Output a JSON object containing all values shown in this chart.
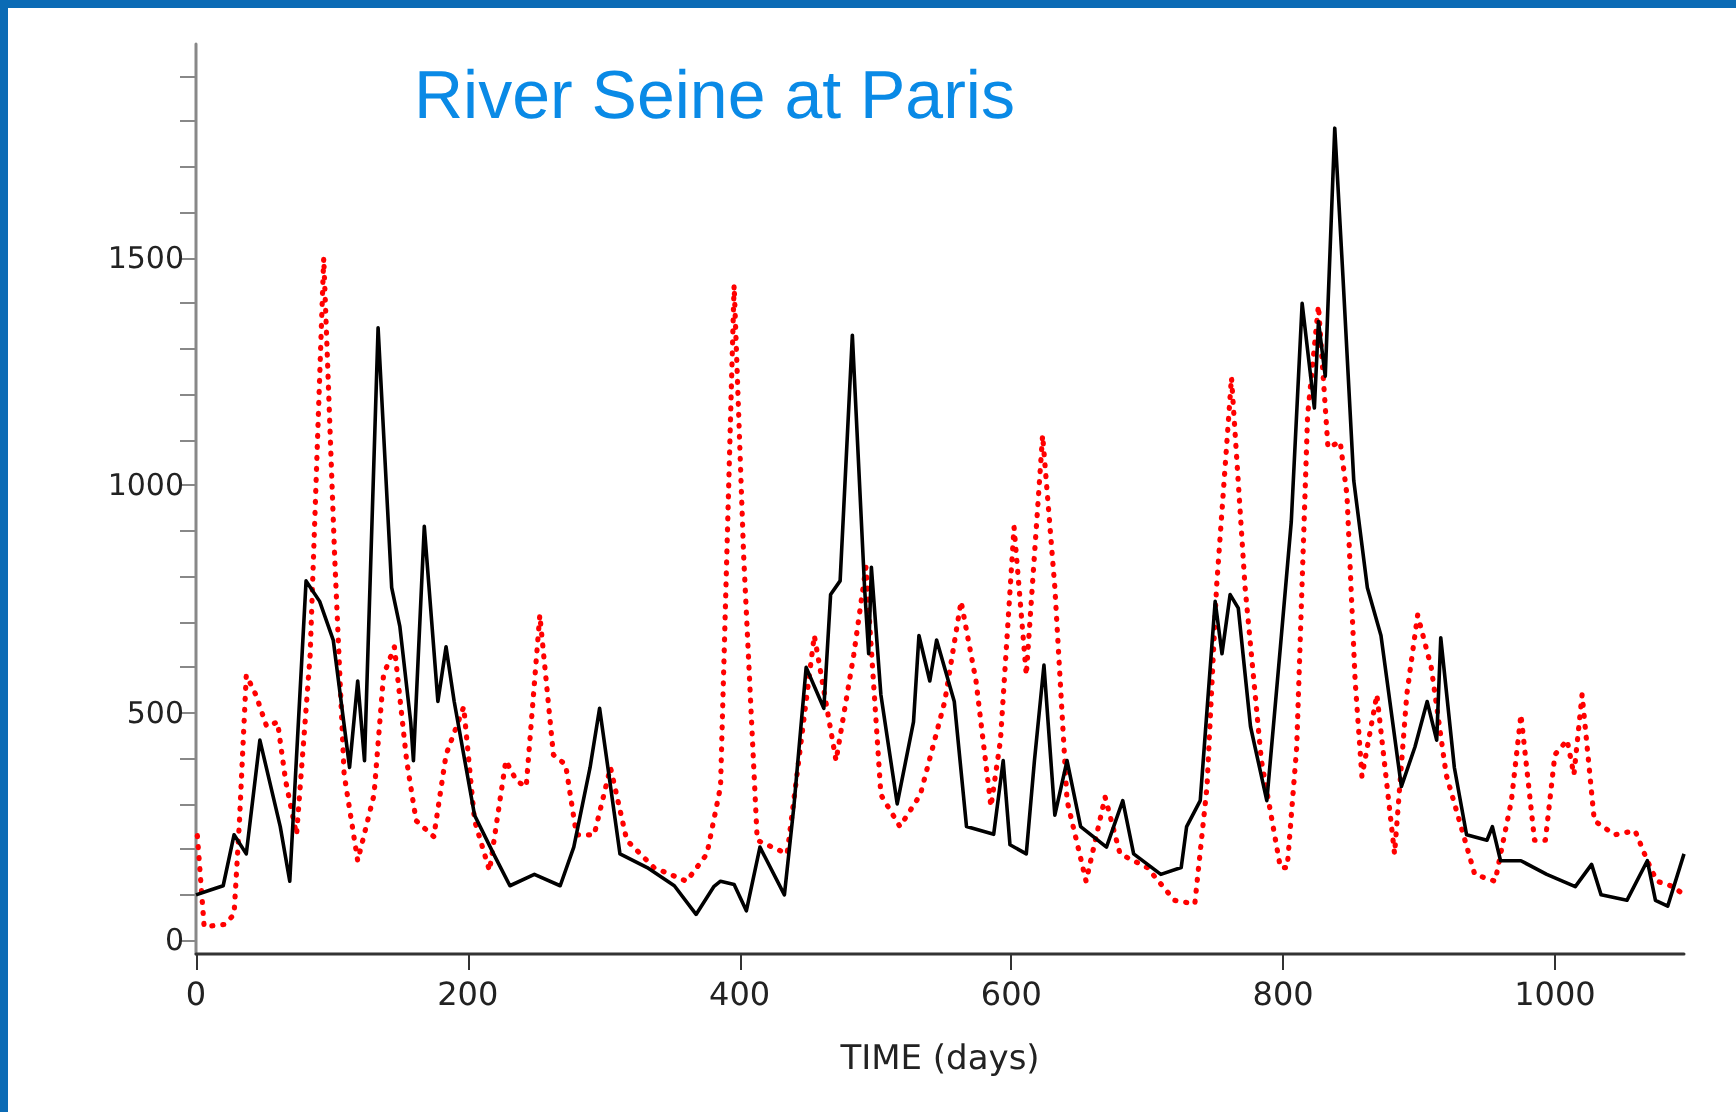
{
  "chart_data": {
    "type": "line",
    "title": "River Seine at Paris",
    "xlabel": "TIME (days)",
    "xlim": [
      0,
      1095
    ],
    "xticks": [
      0,
      200,
      400,
      600,
      800,
      1000
    ],
    "ylim": [
      -30,
      1970
    ],
    "yticks": [
      0,
      {
        "value": 100,
        "label": null
      },
      {
        "value": 200,
        "label": null
      },
      {
        "value": 300,
        "label": null
      },
      {
        "value": 400,
        "label": null
      },
      500,
      {
        "value": 600,
        "label": null
      },
      {
        "value": 700,
        "label": null
      },
      {
        "value": 800,
        "label": null
      },
      {
        "value": 900,
        "label": null
      },
      1000,
      {
        "value": 1100,
        "label": null
      },
      {
        "value": 1200,
        "label": null
      },
      {
        "value": 1300,
        "label": null
      },
      {
        "value": 1400,
        "label": null
      },
      1500,
      {
        "value": 1600,
        "label": null
      },
      {
        "value": 1700,
        "label": null
      },
      {
        "value": 1800,
        "label": null
      },
      {
        "value": 1900,
        "label": null
      }
    ],
    "grid": false,
    "marker": "none",
    "series": [
      {
        "color": "#ff0000",
        "line_style": "dotted",
        "x": [
          1,
          6,
          21,
          28,
          32,
          37,
          44,
          52,
          60,
          66,
          74,
          84,
          94,
          102,
          109,
          119,
          131,
          138,
          146,
          155,
          162,
          175,
          184,
          197,
          205,
          216,
          228,
          236,
          243,
          253,
          263,
          272,
          280,
          293,
          305,
          317,
          337,
          361,
          376,
          386,
          396,
          403,
          413,
          435,
          455,
          471,
          484,
          493,
          504,
          518,
          533,
          551,
          563,
          574,
          585,
          592,
          602,
          611,
          623,
          632,
          641,
          655,
          669,
          680,
          700,
          720,
          735,
          744,
          751,
          762,
          772,
          784,
          798,
          803,
          810,
          818,
          826,
          833,
          842,
          847,
          853,
          858,
          869,
          882,
          891,
          899,
          909,
          920,
          941,
          956,
          968,
          975,
          985,
          993,
          1000,
          1009,
          1014,
          1020,
          1029,
          1044,
          1059,
          1068,
          1075,
          1087,
          1095
        ],
        "values": [
          230,
          30,
          35,
          57,
          263,
          583,
          540,
          470,
          480,
          350,
          232,
          627,
          1500,
          846,
          365,
          175,
          320,
          583,
          645,
          395,
          263,
          228,
          408,
          513,
          263,
          153,
          395,
          350,
          338,
          715,
          408,
          386,
          232,
          232,
          380,
          220,
          160,
          130,
          190,
          338,
          1440,
          846,
          220,
          190,
          670,
          395,
          627,
          820,
          320,
          250,
          320,
          525,
          745,
          570,
          294,
          440,
          908,
          583,
          1110,
          776,
          307,
          130,
          315,
          190,
          160,
          88,
          80,
          338,
          776,
          1237,
          776,
          395,
          160,
          160,
          425,
          1153,
          1395,
          1083,
          1096,
          978,
          570,
          360,
          540,
          190,
          540,
          715,
          600,
          364,
          145,
          130,
          307,
          496,
          220,
          220,
          408,
          440,
          364,
          540,
          263,
          232,
          241,
          175,
          130,
          118,
          100
        ]
      },
      {
        "color": "#000000",
        "line_style": "solid",
        "x": [
          0,
          10,
          20,
          28,
          37,
          47,
          62,
          69,
          81,
          91,
          101,
          113,
          119,
          124,
          134,
          144,
          150,
          158,
          160,
          168,
          178,
          184,
          190,
          205,
          219,
          231,
          249,
          268,
          278,
          290,
          297,
          312,
          332,
          352,
          368,
          381,
          386,
          396,
          405,
          415,
          433,
          440,
          449,
          462,
          467,
          474,
          483,
          492,
          495,
          497,
          504,
          516,
          528,
          532,
          540,
          545,
          558,
          567,
          587,
          594,
          599,
          611,
          617,
          624,
          632,
          641,
          651,
          670,
          682,
          690,
          710,
          725,
          729,
          739,
          750,
          755,
          761,
          767,
          776,
          788,
          798,
          806,
          814,
          823,
          826,
          831,
          838,
          844,
          852,
          862,
          872,
          887,
          897,
          906,
          913,
          916,
          926,
          935,
          950,
          954,
          960,
          975,
          994,
          1015,
          1027,
          1034,
          1053,
          1068,
          1074,
          1083,
          1095
        ],
        "values": [
          100,
          110,
          120,
          232,
          190,
          440,
          250,
          130,
          790,
          745,
          660,
          380,
          570,
          395,
          1346,
          775,
          690,
          480,
          395,
          910,
          525,
          645,
          525,
          275,
          190,
          120,
          145,
          120,
          205,
          380,
          510,
          190,
          160,
          120,
          57,
          118,
          130,
          123,
          65,
          205,
          100,
          295,
          600,
          510,
          760,
          790,
          1330,
          775,
          630,
          820,
          540,
          300,
          480,
          670,
          570,
          660,
          525,
          250,
          233,
          395,
          210,
          190,
          395,
          605,
          275,
          395,
          250,
          205,
          307,
          190,
          145,
          160,
          250,
          307,
          745,
          630,
          760,
          730,
          470,
          307,
          645,
          920,
          1400,
          1170,
          1360,
          1240,
          1785,
          1460,
          1010,
          775,
          670,
          338,
          425,
          525,
          440,
          665,
          380,
          232,
          220,
          250,
          175,
          175,
          145,
          118,
          167,
          100,
          88,
          175,
          88,
          75,
          190
        ]
      }
    ]
  }
}
